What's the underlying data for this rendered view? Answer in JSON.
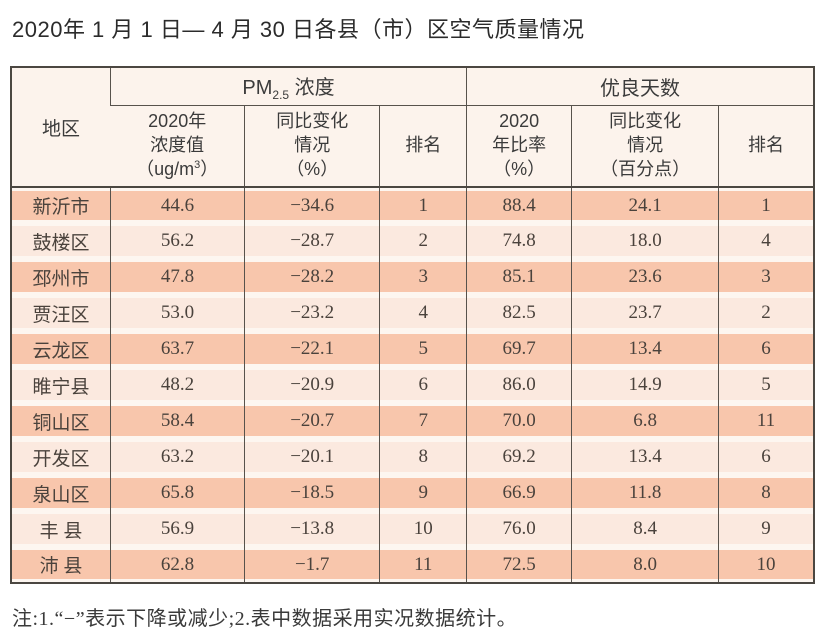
{
  "title": "2020年 1 月 1 日— 4 月 30 日各县（市）区空气质量情况",
  "note": "注:1.“−”表示下降或减少;2.表中数据采用实况数据统计。",
  "table": {
    "headers": {
      "region": "地区",
      "pm_group": {
        "base": "PM",
        "sub": "2.5",
        "suffix": " 浓度"
      },
      "good_group": "优良天数",
      "pm_value_col": {
        "line1": "2020年",
        "line2": "浓度值",
        "unit_pre": "（ug/m",
        "unit_sup": "3",
        "unit_post": "）"
      },
      "pm_change_col": {
        "line1": "同比变化",
        "line2": "情况",
        "line3": "（%）"
      },
      "pm_rank_col": "排名",
      "ratio_col": {
        "line1": "2020",
        "line2": "年比率",
        "line3": "（%）"
      },
      "ratio_change_col": {
        "line1": "同比变化",
        "line2": "情况",
        "line3": "（百分点）"
      },
      "ratio_rank_col": "排名"
    },
    "rows": [
      {
        "region": "新沂市",
        "pm_value": "44.6",
        "pm_change": "−34.6",
        "pm_rank": "1",
        "ratio": "88.4",
        "ratio_change": "24.1",
        "ratio_rank": "1"
      },
      {
        "region": "鼓楼区",
        "pm_value": "56.2",
        "pm_change": "−28.7",
        "pm_rank": "2",
        "ratio": "74.8",
        "ratio_change": "18.0",
        "ratio_rank": "4"
      },
      {
        "region": "邳州市",
        "pm_value": "47.8",
        "pm_change": "−28.2",
        "pm_rank": "3",
        "ratio": "85.1",
        "ratio_change": "23.6",
        "ratio_rank": "3"
      },
      {
        "region": "贾汪区",
        "pm_value": "53.0",
        "pm_change": "−23.2",
        "pm_rank": "4",
        "ratio": "82.5",
        "ratio_change": "23.7",
        "ratio_rank": "2"
      },
      {
        "region": "云龙区",
        "pm_value": "63.7",
        "pm_change": "−22.1",
        "pm_rank": "5",
        "ratio": "69.7",
        "ratio_change": "13.4",
        "ratio_rank": "6"
      },
      {
        "region": "睢宁县",
        "pm_value": "48.2",
        "pm_change": "−20.9",
        "pm_rank": "6",
        "ratio": "86.0",
        "ratio_change": "14.9",
        "ratio_rank": "5"
      },
      {
        "region": "铜山区",
        "pm_value": "58.4",
        "pm_change": "−20.7",
        "pm_rank": "7",
        "ratio": "70.0",
        "ratio_change": "6.8",
        "ratio_rank": "11"
      },
      {
        "region": "开发区",
        "pm_value": "63.2",
        "pm_change": "−20.1",
        "pm_rank": "8",
        "ratio": "69.2",
        "ratio_change": "13.4",
        "ratio_rank": "6"
      },
      {
        "region": "泉山区",
        "pm_value": "65.8",
        "pm_change": "−18.5",
        "pm_rank": "9",
        "ratio": "66.9",
        "ratio_change": "11.8",
        "ratio_rank": "8"
      },
      {
        "region": "丰 县",
        "pm_value": "56.9",
        "pm_change": "−13.8",
        "pm_rank": "10",
        "ratio": "76.0",
        "ratio_change": "8.4",
        "ratio_rank": "9"
      },
      {
        "region": "沛 县",
        "pm_value": "62.8",
        "pm_change": "−1.7",
        "pm_rank": "11",
        "ratio": "72.5",
        "ratio_change": "8.0",
        "ratio_rank": "10"
      }
    ]
  },
  "colors": {
    "band_dark": "#f8c6ac",
    "band_light": "#fbe9df",
    "header_bg": "#fcf3ec",
    "border": "#4b4741"
  }
}
